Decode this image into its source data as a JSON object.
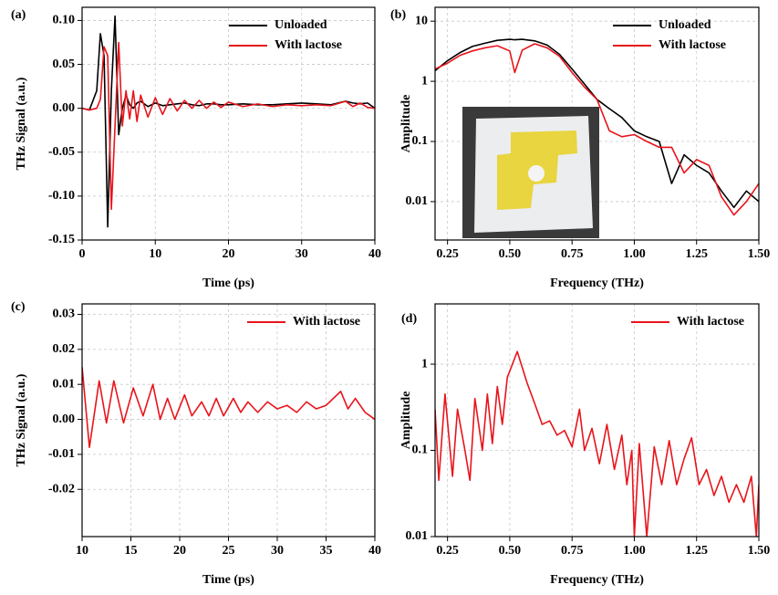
{
  "chart_data": [
    {
      "type": "line",
      "panel_label": "(a)",
      "x_label": "Time (ps)",
      "y_label": "THz Signal (a.u.)",
      "xlim": [
        0,
        40
      ],
      "ylim": [
        -0.15,
        0.115
      ],
      "xticks": [
        0,
        10,
        20,
        30,
        40
      ],
      "yticks": [
        {
          "value": -0.15,
          "label": "-0.15"
        },
        {
          "value": -0.1,
          "label": "-0.10"
        },
        {
          "value": -0.05,
          "label": "-0.05"
        },
        {
          "value": 0,
          "label": "0.00"
        },
        {
          "value": 0.05,
          "label": "0.05"
        },
        {
          "value": 0.1,
          "label": "0.10"
        }
      ],
      "grid": true,
      "legend": "upper right",
      "x": [
        0,
        1,
        2,
        2.5,
        3,
        3.5,
        4,
        4.5,
        5,
        5.5,
        6,
        6.5,
        7,
        7.5,
        8,
        9,
        10,
        11,
        12,
        13,
        14,
        15,
        16,
        17,
        18,
        19,
        20,
        22,
        24,
        26,
        28,
        30,
        32,
        34,
        36,
        37,
        38,
        39,
        40
      ],
      "series": [
        {
          "name": "Unloaded",
          "color": "#000000",
          "values": [
            0,
            -0.002,
            0.02,
            0.085,
            0.06,
            -0.135,
            0.02,
            0.105,
            -0.03,
            0.0,
            0.015,
            0.004,
            0.0,
            0.006,
            0.008,
            0.002,
            0.006,
            0.003,
            0.004,
            0.005,
            0.006,
            0.004,
            0.003,
            0.005,
            0.005,
            0.004,
            0.004,
            0.005,
            0.004,
            0.004,
            0.005,
            0.006,
            0.005,
            0.004,
            0.008,
            0.006,
            0.005,
            0.006,
            0
          ]
        },
        {
          "name": "With lactose",
          "color": "#e8141b",
          "values": [
            0,
            -0.002,
            0,
            0.01,
            0.07,
            0.06,
            -0.115,
            -0.02,
            0.075,
            -0.02,
            0.02,
            -0.012,
            0.02,
            -0.015,
            0.015,
            -0.01,
            0.012,
            -0.007,
            0.011,
            -0.003,
            0.009,
            0.0,
            0.009,
            0.0,
            0.007,
            0.001,
            0.007,
            0.002,
            0.005,
            0.002,
            0.004,
            0.003,
            0.004,
            0.003,
            0.008,
            0.002,
            0.006,
            0.001,
            0
          ]
        }
      ]
    },
    {
      "type": "line",
      "panel_label": "(b)",
      "x_label": "Frequency (THz)",
      "y_label": "Amplitude",
      "log_y": true,
      "xlim": [
        0.2,
        1.5
      ],
      "ylim": [
        0.0023,
        17
      ],
      "xticks": [
        0.25,
        {
          "value": 0.5,
          "label": "0.50"
        },
        0.75,
        {
          "value": 1,
          "label": "1.00"
        },
        1.25,
        {
          "value": 1.5,
          "label": "1.50"
        }
      ],
      "yticks": [
        0.01,
        0.1,
        1,
        10
      ],
      "grid": true,
      "legend": "upper right",
      "x": [
        0.2,
        0.25,
        0.3,
        0.35,
        0.4,
        0.45,
        0.5,
        0.52,
        0.55,
        0.6,
        0.65,
        0.7,
        0.75,
        0.8,
        0.85,
        0.9,
        0.95,
        1.0,
        1.05,
        1.1,
        1.15,
        1.2,
        1.25,
        1.3,
        1.35,
        1.4,
        1.45,
        1.5
      ],
      "series": [
        {
          "name": "Unloaded",
          "color": "#000000",
          "values": [
            1.5,
            2.2,
            3.0,
            3.8,
            4.3,
            4.8,
            5.0,
            4.9,
            5.0,
            4.7,
            4.0,
            2.8,
            1.6,
            0.9,
            0.5,
            0.35,
            0.25,
            0.15,
            0.12,
            0.1,
            0.02,
            0.06,
            0.04,
            0.03,
            0.015,
            0.008,
            0.015,
            0.01
          ]
        },
        {
          "name": "With lactose",
          "color": "#e8141b",
          "values": [
            1.6,
            2.0,
            2.7,
            3.2,
            3.6,
            3.9,
            3.2,
            1.4,
            3.3,
            4.2,
            3.6,
            2.6,
            1.4,
            0.8,
            0.5,
            0.15,
            0.12,
            0.13,
            0.1,
            0.08,
            0.08,
            0.03,
            0.05,
            0.04,
            0.012,
            0.006,
            0.01,
            0.02
          ]
        }
      ]
    },
    {
      "type": "line",
      "panel_label": "(c)",
      "x_label": "Time (ps)",
      "y_label": "THz Signal (a.u.)",
      "xlim": [
        10,
        40
      ],
      "ylim": [
        -0.0335,
        0.033
      ],
      "xticks": [
        10,
        15,
        20,
        25,
        30,
        35,
        40
      ],
      "yticks": [
        -0.02,
        -0.01,
        {
          "value": 0,
          "label": "0.00"
        },
        0.01,
        0.02,
        0.03
      ],
      "grid": true,
      "legend": "upper right",
      "x": [
        10,
        10.75,
        11.75,
        12.5,
        13.25,
        14.25,
        15.25,
        16.25,
        17.25,
        18,
        18.75,
        19.5,
        20.5,
        21.25,
        22.25,
        23,
        23.75,
        24.5,
        25.5,
        26.25,
        27,
        28,
        29,
        30,
        31,
        32,
        33,
        34,
        35,
        36.5,
        37.25,
        38,
        39,
        40
      ],
      "series": [
        {
          "name": "With lactose",
          "color": "#e8141b",
          "values": [
            0.015,
            -0.008,
            0.011,
            -0.001,
            0.011,
            -0.001,
            0.009,
            0.001,
            0.01,
            0.0,
            0.006,
            0.0,
            0.007,
            0.001,
            0.005,
            0.001,
            0.006,
            0.001,
            0.006,
            0.002,
            0.005,
            0.002,
            0.005,
            0.003,
            0.004,
            0.002,
            0.005,
            0.003,
            0.004,
            0.008,
            0.003,
            0.006,
            0.002,
            0
          ]
        }
      ]
    },
    {
      "type": "line",
      "panel_label": "(d)",
      "x_label": "Frequency (THz)",
      "y_label": "Amplitude",
      "log_y": true,
      "xlim": [
        0.2,
        1.5
      ],
      "ylim": [
        0.01,
        5
      ],
      "xticks": [
        0.25,
        {
          "value": 0.5,
          "label": "0.50"
        },
        0.75,
        {
          "value": 1,
          "label": "1.00"
        },
        1.25,
        {
          "value": 1.5,
          "label": "1.50"
        }
      ],
      "yticks": [
        0.01,
        0.1,
        1
      ],
      "grid": true,
      "legend": "upper right",
      "x": [
        0.2,
        0.215,
        0.24,
        0.27,
        0.29,
        0.32,
        0.34,
        0.36,
        0.39,
        0.41,
        0.43,
        0.45,
        0.47,
        0.49,
        0.53,
        0.57,
        0.6,
        0.63,
        0.66,
        0.69,
        0.72,
        0.75,
        0.78,
        0.8,
        0.83,
        0.86,
        0.89,
        0.92,
        0.95,
        0.97,
        0.99,
        1.0,
        1.02,
        1.05,
        1.08,
        1.11,
        1.14,
        1.17,
        1.2,
        1.23,
        1.26,
        1.29,
        1.32,
        1.35,
        1.38,
        1.41,
        1.44,
        1.47,
        1.49,
        1.5
      ],
      "series": [
        {
          "name": "With lactose",
          "color": "#e8141b",
          "values": [
            0.3,
            0.045,
            0.45,
            0.05,
            0.3,
            0.1,
            0.045,
            0.4,
            0.1,
            0.45,
            0.12,
            0.55,
            0.2,
            0.7,
            1.4,
            0.6,
            0.35,
            0.2,
            0.22,
            0.15,
            0.17,
            0.11,
            0.3,
            0.1,
            0.18,
            0.07,
            0.2,
            0.06,
            0.15,
            0.04,
            0.1,
            0.01,
            0.12,
            0.01,
            0.11,
            0.04,
            0.13,
            0.04,
            0.08,
            0.14,
            0.04,
            0.06,
            0.03,
            0.05,
            0.025,
            0.04,
            0.025,
            0.05,
            0.01,
            0.04
          ]
        }
      ]
    }
  ]
}
